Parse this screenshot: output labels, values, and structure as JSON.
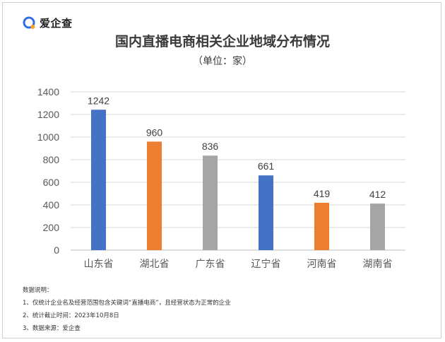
{
  "brand": {
    "name": "爱企查",
    "icon": "q-logo-icon",
    "color": "#2f6fe0",
    "accent": "#f5a623"
  },
  "title": "国内直播电商相关企业地域分布情况",
  "subtitle": "（单位：家）",
  "chart_data": {
    "type": "bar",
    "categories": [
      "山东省",
      "湖北省",
      "广东省",
      "辽宁省",
      "河南省",
      "湖南省"
    ],
    "values": [
      1242,
      960,
      836,
      661,
      419,
      412
    ],
    "bar_colors": [
      "#4472c4",
      "#ed7d31",
      "#a5a5a5",
      "#4472c4",
      "#ed7d31",
      "#a5a5a5"
    ],
    "ylim": [
      0,
      1400
    ],
    "yticks": [
      0,
      200,
      400,
      600,
      800,
      1000,
      1200,
      1400
    ],
    "grid": true,
    "data_labels": true
  },
  "notes": {
    "heading": "数据说明：",
    "items": [
      "1、仅统计企业名及经营范围包含关键词“直播电商”，且经营状态为正常的企业",
      "2、统计截止时间：2023年10月8日",
      "3、数据来源：爱企查"
    ]
  }
}
